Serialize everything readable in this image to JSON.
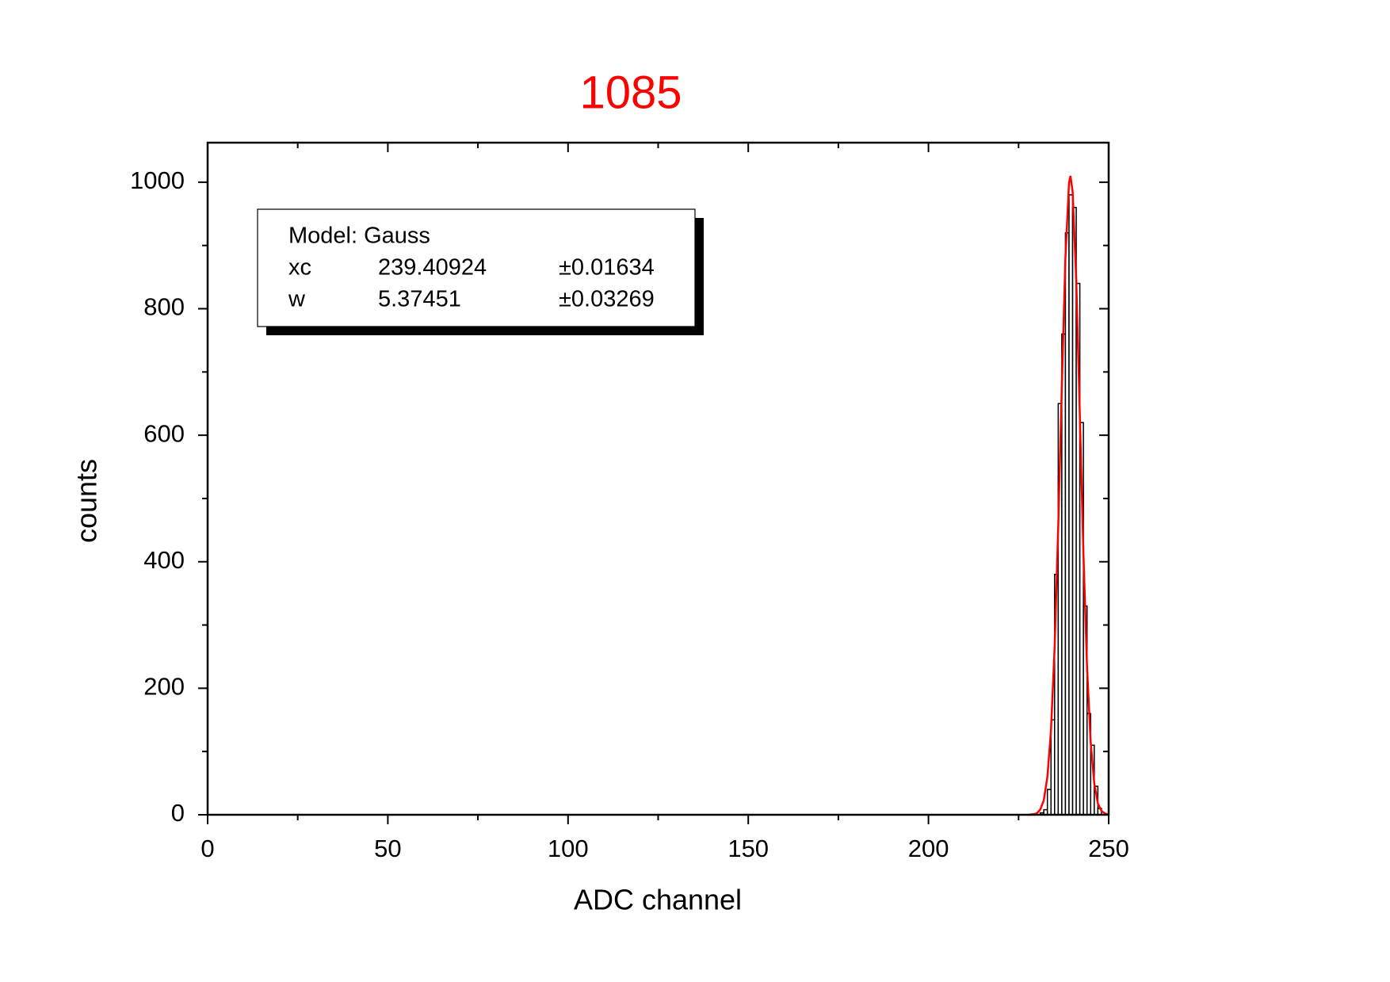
{
  "chart_data": {
    "type": "histogram",
    "title": "1085",
    "title_color": "#ff0000",
    "xlabel": "ADC channel",
    "ylabel": "counts",
    "xlim": [
      0,
      250
    ],
    "ylim": [
      0,
      1062.5
    ],
    "xticks": [
      0,
      50,
      100,
      150,
      200,
      250
    ],
    "yticks": [
      0,
      200,
      400,
      600,
      800,
      1000
    ],
    "xminorticks": [
      25,
      75,
      125,
      175,
      225
    ],
    "yminorticks": [
      100,
      300,
      500,
      700,
      900
    ],
    "bins": [
      231,
      232,
      233,
      234,
      235,
      236,
      237,
      238,
      239,
      240,
      241,
      242,
      243,
      244,
      245,
      246,
      247,
      248
    ],
    "values": [
      3,
      8,
      40,
      150,
      380,
      650,
      760,
      920,
      980,
      960,
      840,
      620,
      330,
      160,
      110,
      45,
      10
    ],
    "color": "#000000",
    "fit": {
      "color": "#ff0000",
      "x": [
        228,
        229,
        230,
        231,
        232,
        233,
        234,
        235,
        236,
        237,
        238,
        239,
        239.4,
        240,
        241,
        242,
        243,
        244,
        245,
        246,
        247,
        248,
        249,
        250
      ],
      "values": [
        0,
        1,
        2,
        8,
        23,
        60,
        134,
        264,
        454,
        677,
        881,
        999,
        1010,
        985,
        846,
        632,
        412,
        234,
        115,
        50,
        18,
        6,
        2,
        0
      ]
    },
    "fit_box": {
      "title": "Model: Gauss",
      "rows": [
        [
          "xc",
          "239.40924",
          "±0.01634"
        ],
        [
          "w",
          "5.37451",
          "±0.03269"
        ]
      ]
    }
  }
}
